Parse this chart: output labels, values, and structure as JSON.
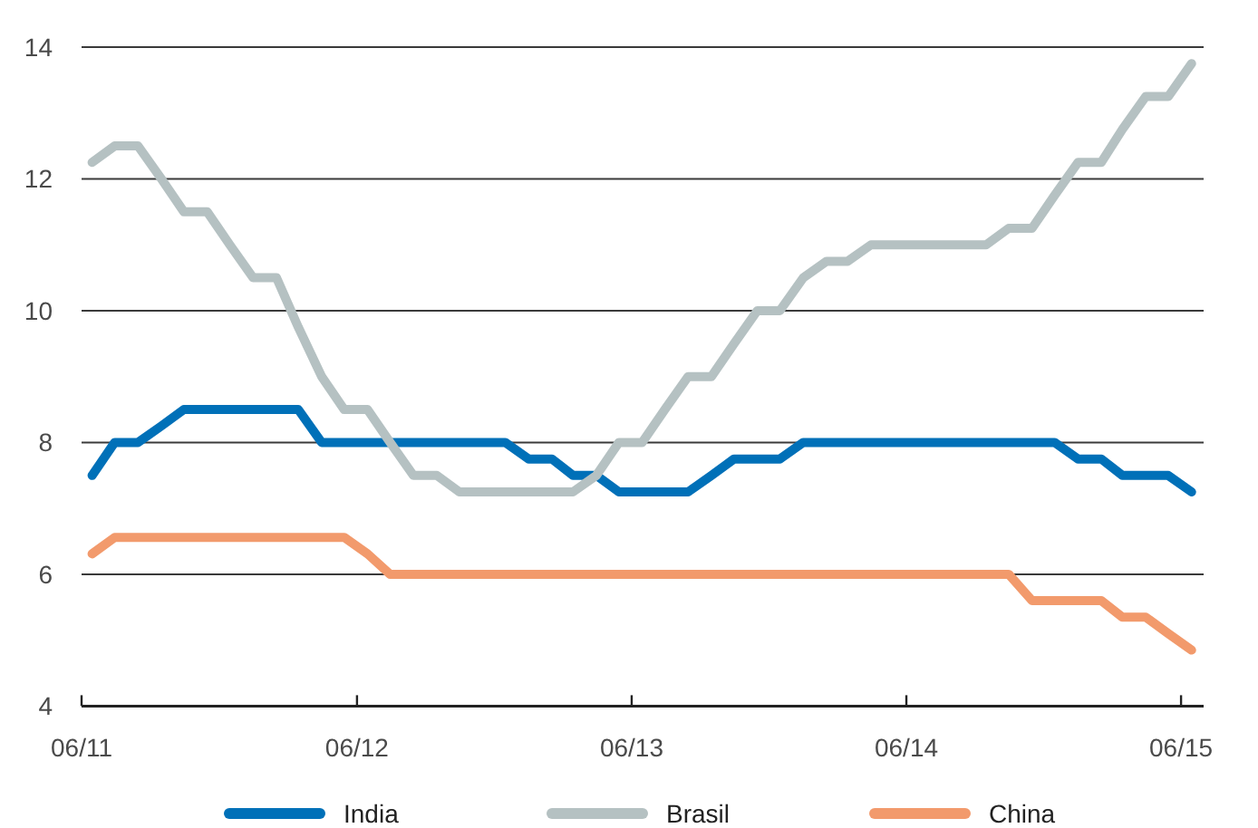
{
  "chart_data": {
    "type": "line",
    "x": [
      "2011-06-15",
      "2011-07-15",
      "2011-08-15",
      "2011-09-15",
      "2011-10-15",
      "2011-11-15",
      "2011-12-15",
      "2012-01-15",
      "2012-02-15",
      "2012-03-15",
      "2012-04-15",
      "2012-05-15",
      "2012-06-15",
      "2012-07-15",
      "2012-08-15",
      "2012-09-15",
      "2012-10-15",
      "2012-11-15",
      "2012-12-15",
      "2013-01-15",
      "2013-02-15",
      "2013-03-15",
      "2013-04-15",
      "2013-05-15",
      "2013-06-15",
      "2013-07-15",
      "2013-08-15",
      "2013-09-15",
      "2013-10-15",
      "2013-11-15",
      "2013-12-15",
      "2014-01-15",
      "2014-02-15",
      "2014-03-15",
      "2014-04-15",
      "2014-05-15",
      "2014-06-15",
      "2014-07-15",
      "2014-08-15",
      "2014-09-15",
      "2014-10-15",
      "2014-11-15",
      "2014-12-15",
      "2015-01-15",
      "2015-02-15",
      "2015-03-15",
      "2015-04-15",
      "2015-05-15",
      "2015-06-15"
    ],
    "series": [
      {
        "name": "India",
        "color": "#0070b8",
        "values": [
          7.5,
          8,
          8,
          8.25,
          8.5,
          8.5,
          8.5,
          8.5,
          8.5,
          8.5,
          8,
          8,
          8,
          8,
          8,
          8,
          8,
          8,
          8,
          7.75,
          7.75,
          7.5,
          7.5,
          7.25,
          7.25,
          7.25,
          7.25,
          7.5,
          7.75,
          7.75,
          7.75,
          8,
          8,
          8,
          8,
          8,
          8,
          8,
          8,
          8,
          8,
          8,
          8,
          7.75,
          7.75,
          7.5,
          7.5,
          7.5,
          7.25
        ]
      },
      {
        "name": "Brasil",
        "color": "#b5c1c2",
        "values": [
          12.25,
          12.5,
          12.5,
          12,
          11.5,
          11.5,
          11,
          10.5,
          10.5,
          9.75,
          9,
          8.5,
          8.5,
          8,
          7.5,
          7.5,
          7.25,
          7.25,
          7.25,
          7.25,
          7.25,
          7.25,
          7.5,
          8,
          8,
          8.5,
          9,
          9,
          9.5,
          10,
          10,
          10.5,
          10.75,
          10.75,
          11,
          11,
          11,
          11,
          11,
          11,
          11.25,
          11.25,
          11.75,
          12.25,
          12.25,
          12.75,
          13.25,
          13.25,
          13.75
        ]
      },
      {
        "name": "China",
        "color": "#f29a6c",
        "values": [
          6.31,
          6.56,
          6.56,
          6.56,
          6.56,
          6.56,
          6.56,
          6.56,
          6.56,
          6.56,
          6.56,
          6.56,
          6.31,
          6,
          6,
          6,
          6,
          6,
          6,
          6,
          6,
          6,
          6,
          6,
          6,
          6,
          6,
          6,
          6,
          6,
          6,
          6,
          6,
          6,
          6,
          6,
          6,
          6,
          6,
          6,
          6,
          5.6,
          5.6,
          5.6,
          5.6,
          5.35,
          5.35,
          5.1,
          4.85
        ]
      }
    ],
    "xlim": [
      "2011-06-01",
      "2015-07-01"
    ],
    "xticks": [
      {
        "value": "2011-06-01",
        "label": "06/11"
      },
      {
        "value": "2012-06-01",
        "label": "06/12"
      },
      {
        "value": "2013-06-01",
        "label": "06/13"
      },
      {
        "value": "2014-06-01",
        "label": "06/14"
      },
      {
        "value": "2015-06-01",
        "label": "06/15"
      }
    ],
    "ylim": [
      4,
      14
    ],
    "yticks": [
      4,
      6,
      8,
      10,
      12,
      14
    ],
    "grid": "y",
    "legend": "bottom",
    "line_style": "solid"
  }
}
